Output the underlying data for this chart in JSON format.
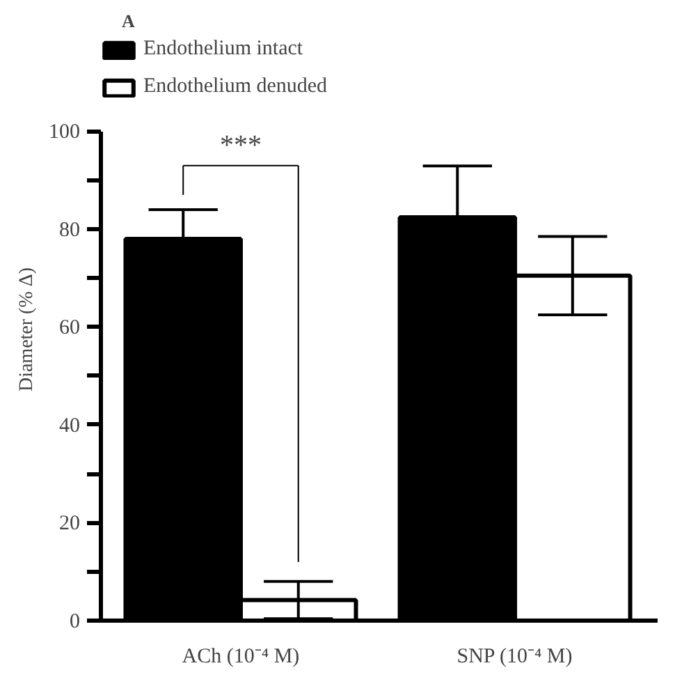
{
  "chart_data": {
    "type": "bar",
    "title": "A",
    "ylabel": "Diameter (% Δ)",
    "categories": [
      "ACh (10⁻⁴ M)",
      "SNP (10⁻⁴ M)"
    ],
    "series": [
      {
        "name": "Endothelium intact",
        "color": "#000000",
        "values": [
          78,
          82.4
        ],
        "errors": [
          [
            78,
            84
          ],
          [
            82.4,
            92.9
          ]
        ]
      },
      {
        "name": "Endothelium denuded",
        "color": "#ffffff",
        "values": [
          4.2,
          70.5
        ],
        "errors": [
          3.8,
          8
        ]
      }
    ],
    "ylim": [
      0,
      100
    ],
    "yticks": [
      0,
      {
        "value": 10,
        "label": null
      },
      20,
      {
        "value": 30,
        "label": null
      },
      40,
      {
        "value": 50,
        "label": null
      },
      60,
      {
        "value": 70,
        "label": null
      },
      80,
      {
        "value": 90,
        "label": null
      },
      100
    ],
    "annotations": [
      "***"
    ],
    "grid": false,
    "legend": "top left"
  }
}
